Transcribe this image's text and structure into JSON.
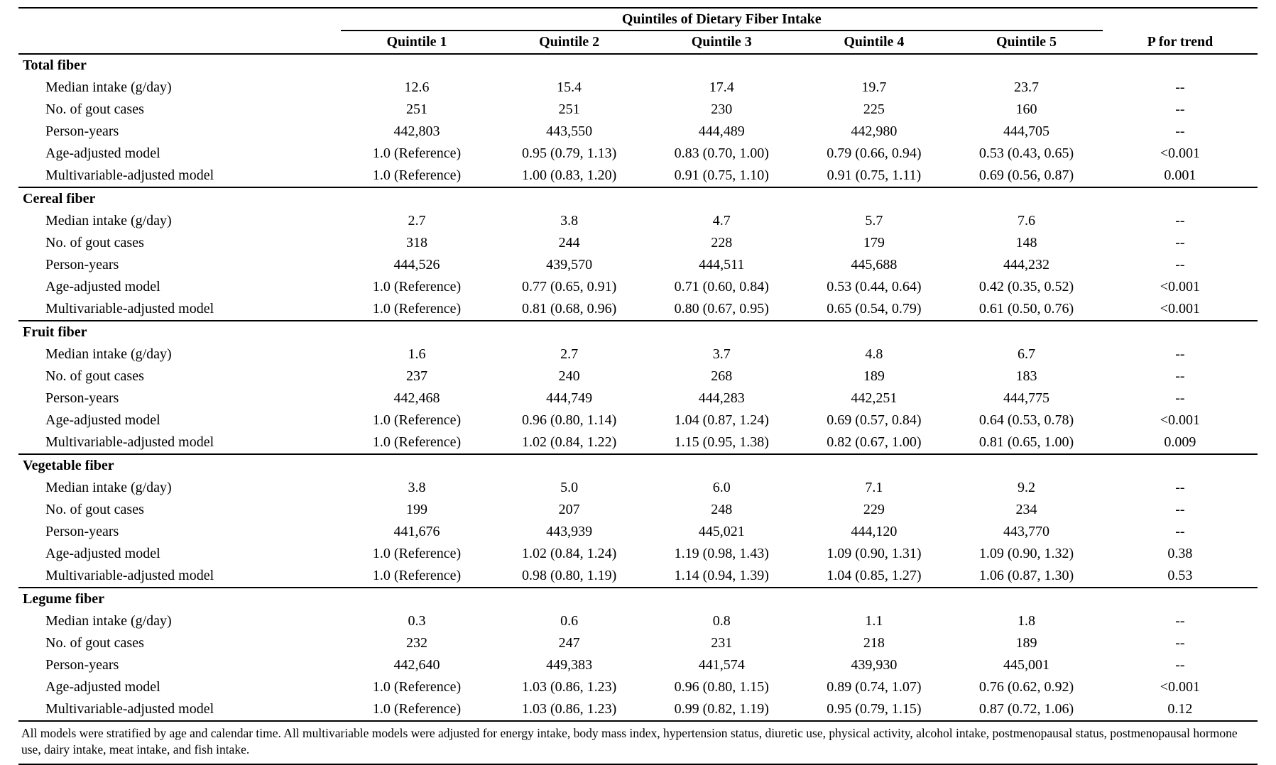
{
  "table": {
    "spanner_header": "Quintiles of Dietary Fiber Intake",
    "columns": [
      "Quintile 1",
      "Quintile 2",
      "Quintile 3",
      "Quintile 4",
      "Quintile 5",
      "P for trend"
    ],
    "sections": [
      {
        "title": "Total fiber",
        "rows": [
          {
            "label": "Median intake (g/day)",
            "values": [
              "12.6",
              "15.4",
              "17.4",
              "19.7",
              "23.7",
              "--"
            ]
          },
          {
            "label": "No. of gout cases",
            "values": [
              "251",
              "251",
              "230",
              "225",
              "160",
              "--"
            ]
          },
          {
            "label": "Person-years",
            "values": [
              "442,803",
              "443,550",
              "444,489",
              "442,980",
              "444,705",
              "--"
            ]
          },
          {
            "label": "Age-adjusted model",
            "values": [
              "1.0 (Reference)",
              "0.95 (0.79, 1.13)",
              "0.83 (0.70, 1.00)",
              "0.79 (0.66, 0.94)",
              "0.53 (0.43, 0.65)",
              "<0.001"
            ]
          },
          {
            "label": "Multivariable-adjusted model",
            "values": [
              "1.0 (Reference)",
              "1.00 (0.83, 1.20)",
              "0.91 (0.75, 1.10)",
              "0.91 (0.75, 1.11)",
              "0.69 (0.56, 0.87)",
              "0.001"
            ]
          }
        ]
      },
      {
        "title": "Cereal fiber",
        "rows": [
          {
            "label": "Median intake (g/day)",
            "values": [
              "2.7",
              "3.8",
              "4.7",
              "5.7",
              "7.6",
              "--"
            ]
          },
          {
            "label": "No. of gout cases",
            "values": [
              "318",
              "244",
              "228",
              "179",
              "148",
              "--"
            ]
          },
          {
            "label": "Person-years",
            "values": [
              "444,526",
              "439,570",
              "444,511",
              "445,688",
              "444,232",
              "--"
            ]
          },
          {
            "label": "Age-adjusted model",
            "values": [
              "1.0 (Reference)",
              "0.77 (0.65, 0.91)",
              "0.71 (0.60, 0.84)",
              "0.53 (0.44, 0.64)",
              "0.42 (0.35, 0.52)",
              "<0.001"
            ]
          },
          {
            "label": "Multivariable-adjusted model",
            "values": [
              "1.0 (Reference)",
              "0.81 (0.68, 0.96)",
              "0.80 (0.67, 0.95)",
              "0.65 (0.54, 0.79)",
              "0.61 (0.50, 0.76)",
              "<0.001"
            ]
          }
        ]
      },
      {
        "title": "Fruit fiber",
        "rows": [
          {
            "label": "Median intake (g/day)",
            "values": [
              "1.6",
              "2.7",
              "3.7",
              "4.8",
              "6.7",
              "--"
            ]
          },
          {
            "label": "No. of gout cases",
            "values": [
              "237",
              "240",
              "268",
              "189",
              "183",
              "--"
            ]
          },
          {
            "label": "Person-years",
            "values": [
              "442,468",
              "444,749",
              "444,283",
              "442,251",
              "444,775",
              "--"
            ]
          },
          {
            "label": "Age-adjusted model",
            "values": [
              "1.0 (Reference)",
              "0.96 (0.80, 1.14)",
              "1.04 (0.87, 1.24)",
              "0.69 (0.57, 0.84)",
              "0.64 (0.53, 0.78)",
              "<0.001"
            ]
          },
          {
            "label": "Multivariable-adjusted model",
            "values": [
              "1.0 (Reference)",
              "1.02 (0.84, 1.22)",
              "1.15 (0.95, 1.38)",
              "0.82 (0.67, 1.00)",
              "0.81 (0.65, 1.00)",
              "0.009"
            ]
          }
        ]
      },
      {
        "title": "Vegetable fiber",
        "rows": [
          {
            "label": "Median intake (g/day)",
            "values": [
              "3.8",
              "5.0",
              "6.0",
              "7.1",
              "9.2",
              "--"
            ]
          },
          {
            "label": "No. of gout cases",
            "values": [
              "199",
              "207",
              "248",
              "229",
              "234",
              "--"
            ]
          },
          {
            "label": "Person-years",
            "values": [
              "441,676",
              "443,939",
              "445,021",
              "444,120",
              "443,770",
              "--"
            ]
          },
          {
            "label": "Age-adjusted model",
            "values": [
              "1.0 (Reference)",
              "1.02 (0.84, 1.24)",
              "1.19 (0.98, 1.43)",
              "1.09 (0.90, 1.31)",
              "1.09 (0.90, 1.32)",
              "0.38"
            ]
          },
          {
            "label": "Multivariable-adjusted model",
            "values": [
              "1.0 (Reference)",
              "0.98 (0.80, 1.19)",
              "1.14 (0.94, 1.39)",
              "1.04 (0.85, 1.27)",
              "1.06 (0.87, 1.30)",
              "0.53"
            ]
          }
        ]
      },
      {
        "title": "Legume fiber",
        "rows": [
          {
            "label": "Median intake (g/day)",
            "values": [
              "0.3",
              "0.6",
              "0.8",
              "1.1",
              "1.8",
              "--"
            ]
          },
          {
            "label": "No. of gout cases",
            "values": [
              "232",
              "247",
              "231",
              "218",
              "189",
              "--"
            ]
          },
          {
            "label": "Person-years",
            "values": [
              "442,640",
              "449,383",
              "441,574",
              "439,930",
              "445,001",
              "--"
            ]
          },
          {
            "label": "Age-adjusted model",
            "values": [
              "1.0 (Reference)",
              "1.03 (0.86, 1.23)",
              "0.96 (0.80, 1.15)",
              "0.89 (0.74, 1.07)",
              "0.76 (0.62, 0.92)",
              "<0.001"
            ]
          },
          {
            "label": "Multivariable-adjusted model",
            "values": [
              "1.0 (Reference)",
              "1.03 (0.86, 1.23)",
              "0.99 (0.82, 1.19)",
              "0.95 (0.79, 1.15)",
              "0.87 (0.72, 1.06)",
              "0.12"
            ]
          }
        ]
      }
    ],
    "footnote": "All models were stratified by age and calendar time. All multivariable models were adjusted for energy intake, body mass index, hypertension status, diuretic use, physical activity, alcohol intake, postmenopausal status, postmenopausal hormone use, dairy intake, meat intake, and fish intake."
  }
}
